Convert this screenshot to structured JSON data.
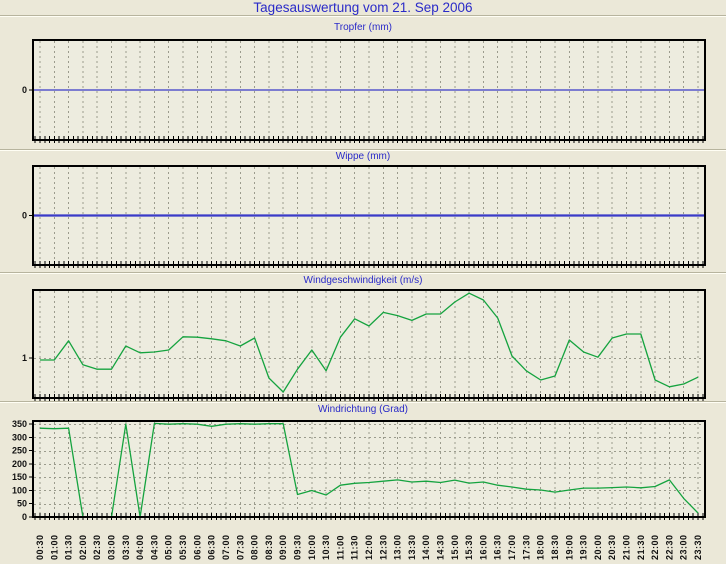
{
  "page_title": "Tagesauswertung vom 21. Sep 2006",
  "colors": {
    "background": "#ebe8d8",
    "plot_background": "#edecdf",
    "gridline": "#9b9b8d",
    "axis_border": "#000000",
    "title_text": "#2a2ac8",
    "axis_label_text": "#111111",
    "rain_line": "#3a3ac8",
    "wind_line": "#15a33f"
  },
  "x_axis": {
    "time_labels": [
      "00:30",
      "01:00",
      "01:30",
      "02:00",
      "02:30",
      "03:00",
      "03:30",
      "04:00",
      "04:30",
      "05:00",
      "05:30",
      "06:00",
      "06:30",
      "07:00",
      "07:30",
      "08:00",
      "08:30",
      "09:00",
      "09:30",
      "10:00",
      "10:30",
      "11:00",
      "11:30",
      "12:00",
      "12:30",
      "13:00",
      "13:30",
      "14:00",
      "14:30",
      "15:00",
      "15:30",
      "16:00",
      "16:30",
      "17:00",
      "17:30",
      "18:00",
      "18:30",
      "19:00",
      "19:30",
      "20:00",
      "20:30",
      "21:00",
      "21:30",
      "22:00",
      "22:30",
      "23:00",
      "23:30"
    ]
  },
  "chart_data": [
    {
      "id": "tropfer",
      "type": "line",
      "title": "Tropfer (mm)",
      "ylabel_ticks": [
        {
          "label": "0",
          "value": 0
        }
      ],
      "ylim": [
        -1,
        1
      ],
      "hgrid_values": [],
      "constant_value": 0,
      "line_color_key": "rain_line",
      "line_width": 1.2
    },
    {
      "id": "wippe",
      "type": "line",
      "title": "Wippe (mm)",
      "ylabel_ticks": [
        {
          "label": "0",
          "value": 0
        }
      ],
      "ylim": [
        -1,
        1
      ],
      "hgrid_values": [],
      "constant_value": 0,
      "line_color_key": "rain_line",
      "line_width": 2.2
    },
    {
      "id": "windgeschwindigkeit",
      "type": "line",
      "title": "Windgeschwindigkeit (m/s)",
      "ylabel_ticks": [
        {
          "label": "1",
          "value": 1
        }
      ],
      "ylim": [
        0,
        2.7
      ],
      "hgrid_values": [
        1
      ],
      "values": [
        0.95,
        0.95,
        1.43,
        0.83,
        0.72,
        0.72,
        1.3,
        1.13,
        1.15,
        1.2,
        1.53,
        1.52,
        1.48,
        1.43,
        1.3,
        1.5,
        0.5,
        0.15,
        0.72,
        1.2,
        0.68,
        1.52,
        1.98,
        1.8,
        2.14,
        2.06,
        1.94,
        2.1,
        2.1,
        2.4,
        2.62,
        2.45,
        2.0,
        1.05,
        0.68,
        0.45,
        0.55,
        1.45,
        1.15,
        1.02,
        1.5,
        1.6,
        1.6,
        0.45,
        0.28,
        0.35,
        0.52
      ],
      "line_color_key": "wind_line",
      "line_width": 1.3
    },
    {
      "id": "windrichtung",
      "type": "line",
      "title": "Windrichtung (Grad)",
      "ylabel_ticks": [
        {
          "label": "0",
          "value": 0
        },
        {
          "label": "50",
          "value": 50
        },
        {
          "label": "100",
          "value": 100
        },
        {
          "label": "150",
          "value": 150
        },
        {
          "label": "200",
          "value": 200
        },
        {
          "label": "250",
          "value": 250
        },
        {
          "label": "300",
          "value": 300
        },
        {
          "label": "350",
          "value": 350
        }
      ],
      "ylim": [
        0,
        362
      ],
      "hgrid_values": [
        50,
        100,
        150,
        200,
        250,
        300,
        350
      ],
      "values": [
        335,
        333,
        335,
        0,
        0,
        0,
        350,
        0,
        353,
        350,
        352,
        350,
        342,
        350,
        352,
        350,
        352,
        352,
        85,
        100,
        83,
        120,
        127,
        130,
        135,
        140,
        132,
        135,
        130,
        139,
        128,
        132,
        120,
        113,
        105,
        102,
        94,
        102,
        109,
        109,
        111,
        113,
        110,
        115,
        140,
        70,
        15
      ],
      "line_color_key": "wind_line",
      "line_width": 1.3
    }
  ]
}
